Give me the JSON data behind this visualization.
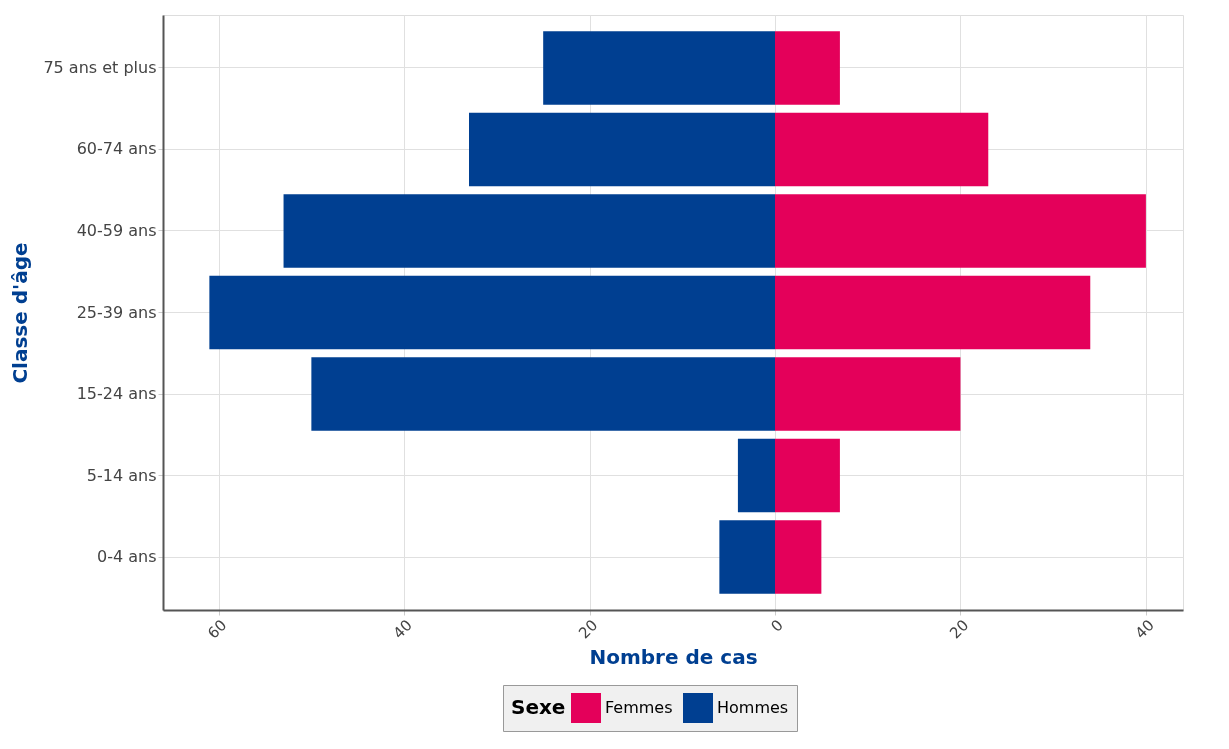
{
  "chart_data": {
    "type": "bar",
    "orientation": "horizontal",
    "stacked": true,
    "categories": [
      "75 ans et plus",
      "60-74 ans",
      "40-59 ans",
      "25-39 ans",
      "15-24 ans",
      "5-14 ans",
      "0-4 ans"
    ],
    "series": [
      {
        "name": "Femmes",
        "color": "#e4005a",
        "values": [
          7,
          23,
          40,
          34,
          20,
          7,
          5
        ]
      },
      {
        "name": "Hommes",
        "color": "#003f91",
        "values": [
          -25,
          -33,
          -53,
          -61,
          -50,
          -4,
          -6
        ]
      }
    ],
    "xlabel": "Nombre de cas",
    "ylabel": "Classe d'âge",
    "legend_title": "Sexe",
    "xlim": [
      -66,
      44
    ],
    "xticks": [
      {
        "value": -60,
        "label": "60"
      },
      {
        "value": -40,
        "label": "40"
      },
      {
        "value": -20,
        "label": "20"
      },
      0,
      20,
      40
    ],
    "grid": true,
    "legend": "bottom"
  }
}
